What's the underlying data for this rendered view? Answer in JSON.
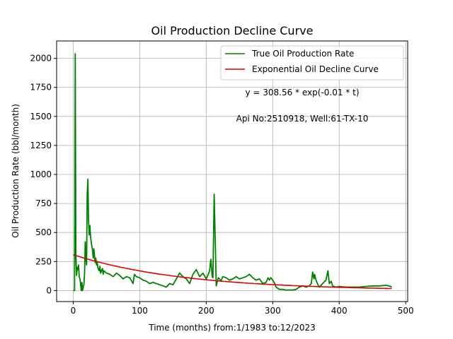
{
  "chart_data": {
    "type": "line",
    "title": "Oil Production Decline Curve",
    "xlabel": "Time (months) from:1/1983 to:12/2023",
    "ylabel": "Oil Production Rate (bbl/month)",
    "xlim": [
      -25,
      503
    ],
    "ylim": [
      -95,
      2150
    ],
    "xticks": [
      0,
      100,
      200,
      300,
      400,
      500
    ],
    "yticks": [
      0,
      250,
      500,
      750,
      1000,
      1250,
      1500,
      1750,
      2000
    ],
    "grid": true,
    "legend_position": "top-right",
    "annotations": [
      "y = 308.56 * exp(-0.01 * t)",
      "Api No:2510918, Well:61-TX-10"
    ],
    "series": [
      {
        "name": "True Oil Production Rate",
        "color": "#008000",
        "x": [
          0,
          2,
          3,
          4,
          5,
          6,
          7,
          8,
          9,
          10,
          11,
          12,
          13,
          14,
          15,
          16,
          17,
          18,
          19,
          20,
          21,
          22,
          23,
          24,
          25,
          26,
          27,
          28,
          29,
          30,
          31,
          32,
          33,
          34,
          35,
          36,
          37,
          38,
          39,
          40,
          41,
          42,
          43,
          44,
          45,
          46,
          48,
          50,
          55,
          60,
          65,
          70,
          75,
          80,
          85,
          88,
          90,
          92,
          95,
          100,
          105,
          110,
          115,
          120,
          125,
          130,
          135,
          140,
          145,
          150,
          155,
          160,
          165,
          170,
          175,
          180,
          185,
          190,
          195,
          200,
          203,
          205,
          207,
          209,
          210,
          212,
          215,
          218,
          220,
          222,
          225,
          230,
          235,
          240,
          245,
          250,
          255,
          260,
          265,
          270,
          275,
          280,
          285,
          290,
          293,
          295,
          297,
          300,
          303,
          305,
          310,
          315,
          320,
          325,
          330,
          335,
          340,
          345,
          350,
          355,
          358,
          360,
          362,
          363,
          365,
          368,
          370,
          375,
          380,
          383,
          385,
          388,
          390,
          395,
          400,
          410,
          420,
          430,
          440,
          450,
          460,
          470,
          475,
          479
        ],
        "values": [
          0,
          0,
          2040,
          300,
          130,
          200,
          180,
          220,
          120,
          100,
          60,
          0,
          70,
          0,
          30,
          50,
          150,
          420,
          280,
          220,
          830,
          960,
          600,
          480,
          560,
          470,
          420,
          380,
          350,
          280,
          360,
          300,
          240,
          280,
          220,
          250,
          200,
          180,
          170,
          210,
          150,
          160,
          180,
          190,
          140,
          170,
          160,
          150,
          140,
          120,
          150,
          130,
          100,
          120,
          110,
          80,
          60,
          140,
          120,
          110,
          90,
          80,
          60,
          70,
          60,
          50,
          40,
          30,
          60,
          50,
          100,
          150,
          120,
          100,
          60,
          140,
          180,
          120,
          150,
          100,
          140,
          170,
          270,
          120,
          110,
          830,
          40,
          110,
          100,
          80,
          120,
          110,
          90,
          100,
          120,
          100,
          110,
          120,
          140,
          110,
          90,
          100,
          60,
          70,
          110,
          90,
          110,
          90,
          60,
          30,
          10,
          10,
          5,
          5,
          5,
          10,
          30,
          40,
          30,
          40,
          60,
          160,
          100,
          140,
          90,
          50,
          30,
          60,
          90,
          170,
          60,
          80,
          40,
          30,
          35,
          30,
          30,
          30,
          35,
          40,
          40,
          45,
          40,
          30
        ]
      },
      {
        "name": "Exponential Oil Decline Curve",
        "color": "#e00000",
        "fit": {
          "a": 308.56,
          "b": -0.006,
          "x_start": 0,
          "x_end": 479
        }
      }
    ]
  }
}
